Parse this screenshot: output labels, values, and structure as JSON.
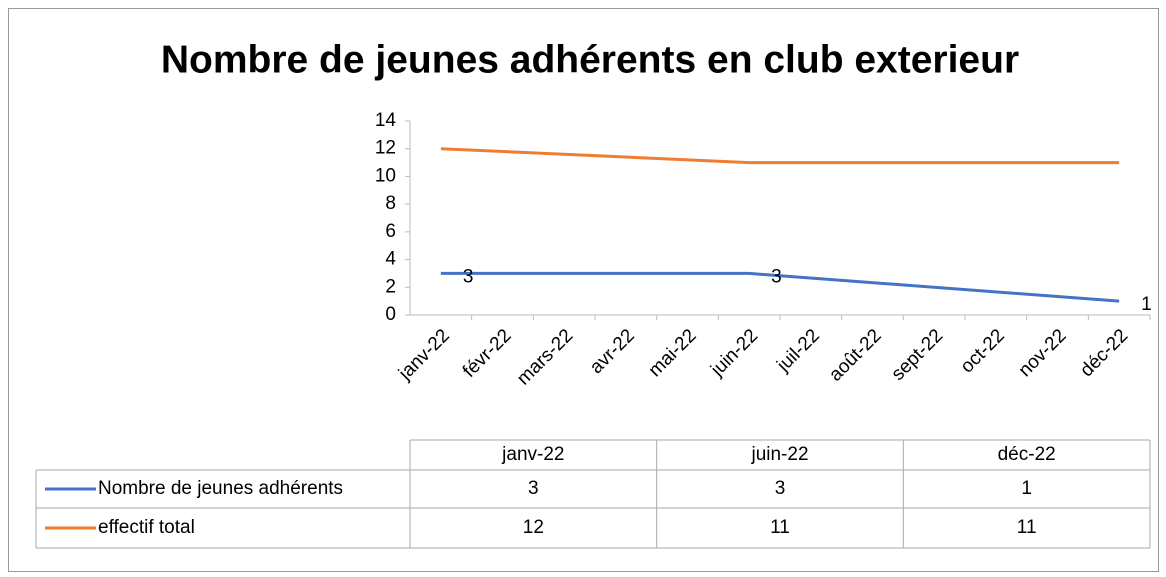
{
  "chart_data": {
    "type": "line",
    "title": "Nombre de jeunes adhérents en club exterieur",
    "categories": [
      "janv-22",
      "févr-22",
      "mars-22",
      "avr-22",
      "mai-22",
      "juin-22",
      "juil-22",
      "août-22",
      "sept-22",
      "oct-22",
      "nov-22",
      "déc-22"
    ],
    "x": [
      "janv-22",
      "juin-22",
      "déc-22"
    ],
    "series": [
      {
        "name": "Nombre de jeunes adhérents",
        "color": "#4472c4",
        "values": [
          3,
          3,
          1
        ],
        "data_labels": true
      },
      {
        "name": "effectif total",
        "color": "#ed7d31",
        "values": [
          12,
          11,
          11
        ],
        "data_labels": false
      }
    ],
    "ylim": [
      0,
      14
    ],
    "yticks": [
      0,
      2,
      4,
      6,
      8,
      10,
      12,
      14
    ],
    "grid": false,
    "data_table": true
  }
}
